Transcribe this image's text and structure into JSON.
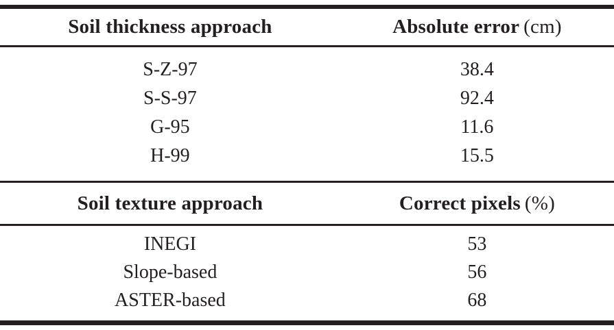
{
  "page": {
    "background": "#ffffff",
    "text_color": "#231f20",
    "rule_color": "#231f20"
  },
  "tables": [
    {
      "header": {
        "approach_label": "Soil thickness approach",
        "metric_label": "Absolute error",
        "metric_unit": "(cm)"
      },
      "rows": [
        {
          "approach": "S-Z-97",
          "value": "38.4"
        },
        {
          "approach": "S-S-97",
          "value": "92.4"
        },
        {
          "approach": "G-95",
          "value": "11.6"
        },
        {
          "approach": "H-99",
          "value": "15.5"
        }
      ]
    },
    {
      "header": {
        "approach_label": "Soil texture approach",
        "metric_label": "Correct pixels",
        "metric_unit": "(%)"
      },
      "rows": [
        {
          "approach": "INEGI",
          "value": "53"
        },
        {
          "approach": "Slope-based",
          "value": "56"
        },
        {
          "approach": "ASTER-based",
          "value": "68"
        }
      ]
    }
  ],
  "chart_data": {
    "type": "table",
    "tables": [
      {
        "columns": [
          "Soil thickness approach",
          "Absolute error (cm)"
        ],
        "rows": [
          [
            "S-Z-97",
            38.4
          ],
          [
            "S-S-97",
            92.4
          ],
          [
            "G-95",
            11.6
          ],
          [
            "H-99",
            15.5
          ]
        ]
      },
      {
        "columns": [
          "Soil texture approach",
          "Correct pixels (%)"
        ],
        "rows": [
          [
            "INEGI",
            53
          ],
          [
            "Slope-based",
            56
          ],
          [
            "ASTER-based",
            68
          ]
        ]
      }
    ]
  }
}
